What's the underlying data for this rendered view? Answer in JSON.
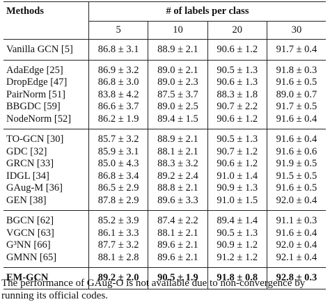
{
  "table": {
    "methods_header": "Methods",
    "group_header": "# of labels per class",
    "columns": [
      "5",
      "10",
      "20",
      "30"
    ],
    "groups": [
      {
        "rows": [
          {
            "method": "Vanilla GCN [5]",
            "values": [
              "86.8 ± 3.1",
              "88.9 ± 2.1",
              "90.6 ± 1.2",
              "91.7 ± 0.4"
            ]
          }
        ]
      },
      {
        "rows": [
          {
            "method": "AdaEdge [25]",
            "values": [
              "86.9 ± 3.2",
              "89.0 ± 2.1",
              "90.5 ± 1.3",
              "91.8 ± 0.3"
            ]
          },
          {
            "method": "DropEdge [47]",
            "values": [
              "86.8 ± 3.0",
              "89.0 ± 2.3",
              "90.6 ± 1.3",
              "91.6 ± 0.5"
            ]
          },
          {
            "method": "PairNorm [51]",
            "values": [
              "83.8 ± 4.2",
              "87.5 ± 3.7",
              "88.3 ± 1.8",
              "89.0 ± 0.7"
            ]
          },
          {
            "method": "BBGDC [59]",
            "values": [
              "86.6 ± 3.7",
              "89.0 ± 2.5",
              "90.7 ± 2.2",
              "91.7 ± 0.5"
            ]
          },
          {
            "method": "NodeNorm [52]",
            "values": [
              "86.2 ± 1.9",
              "89.4 ± 1.5",
              "90.6 ± 1.2",
              "91.6 ± 0.4"
            ]
          }
        ]
      },
      {
        "rows": [
          {
            "method": "TO-GCN [30]",
            "values": [
              "85.7 ± 3.2",
              "88.9 ± 2.1",
              "90.5 ± 1.3",
              "91.6 ± 0.4"
            ]
          },
          {
            "method": "GDC [32]",
            "values": [
              "85.9 ± 3.1",
              "88.1 ± 2.1",
              "90.7 ± 1.2",
              "91.6 ± 0.6"
            ]
          },
          {
            "method": "GRCN [33]",
            "values": [
              "85.0 ± 4.3",
              "88.3 ± 3.2",
              "90.6 ± 1.2",
              "91.9 ± 0.5"
            ]
          },
          {
            "method": "IDGL [34]",
            "values": [
              "86.8 ± 3.4",
              "89.2 ± 2.4",
              "91.0 ± 1.4",
              "91.5 ± 0.5"
            ]
          },
          {
            "method": "GAug-M [36]",
            "values": [
              "86.5 ± 2.9",
              "88.8 ± 2.1",
              "90.9 ± 1.3",
              "91.6 ± 0.5"
            ]
          },
          {
            "method": "GEN [38]",
            "values": [
              "87.8 ± 2.9",
              "89.6 ± 3.3",
              "91.0 ± 1.5",
              "92.0 ± 0.4"
            ]
          }
        ]
      },
      {
        "rows": [
          {
            "method": "BGCN [62]",
            "values": [
              "85.2 ± 3.9",
              "87.4 ± 2.2",
              "89.4 ± 1.4",
              "91.1 ± 0.3"
            ]
          },
          {
            "method": "VGCN [63]",
            "values": [
              "86.1 ± 3.3",
              "88.1 ± 2.1",
              "90.5 ± 1.3",
              "91.6 ± 0.4"
            ]
          },
          {
            "method": "G³NN [66]",
            "values": [
              "87.7 ± 3.2",
              "89.6 ± 2.1",
              "90.9 ± 1.2",
              "92.0 ± 0.4"
            ]
          },
          {
            "method": "GMNN [65]",
            "values": [
              "88.1 ± 2.8",
              "89.6 ± 2.1",
              "91.2 ± 1.2",
              "92.1 ± 0.4"
            ]
          }
        ]
      }
    ],
    "best": {
      "method": "EM-GCN",
      "values": [
        "89.2 ± 2.0",
        "90.5 ± 1.9",
        "91.8 ± 0.8",
        "92.8 ± 0.3"
      ]
    }
  },
  "footnote": "The performance of GAug-O is not available due to non-convergence by running its official codes."
}
